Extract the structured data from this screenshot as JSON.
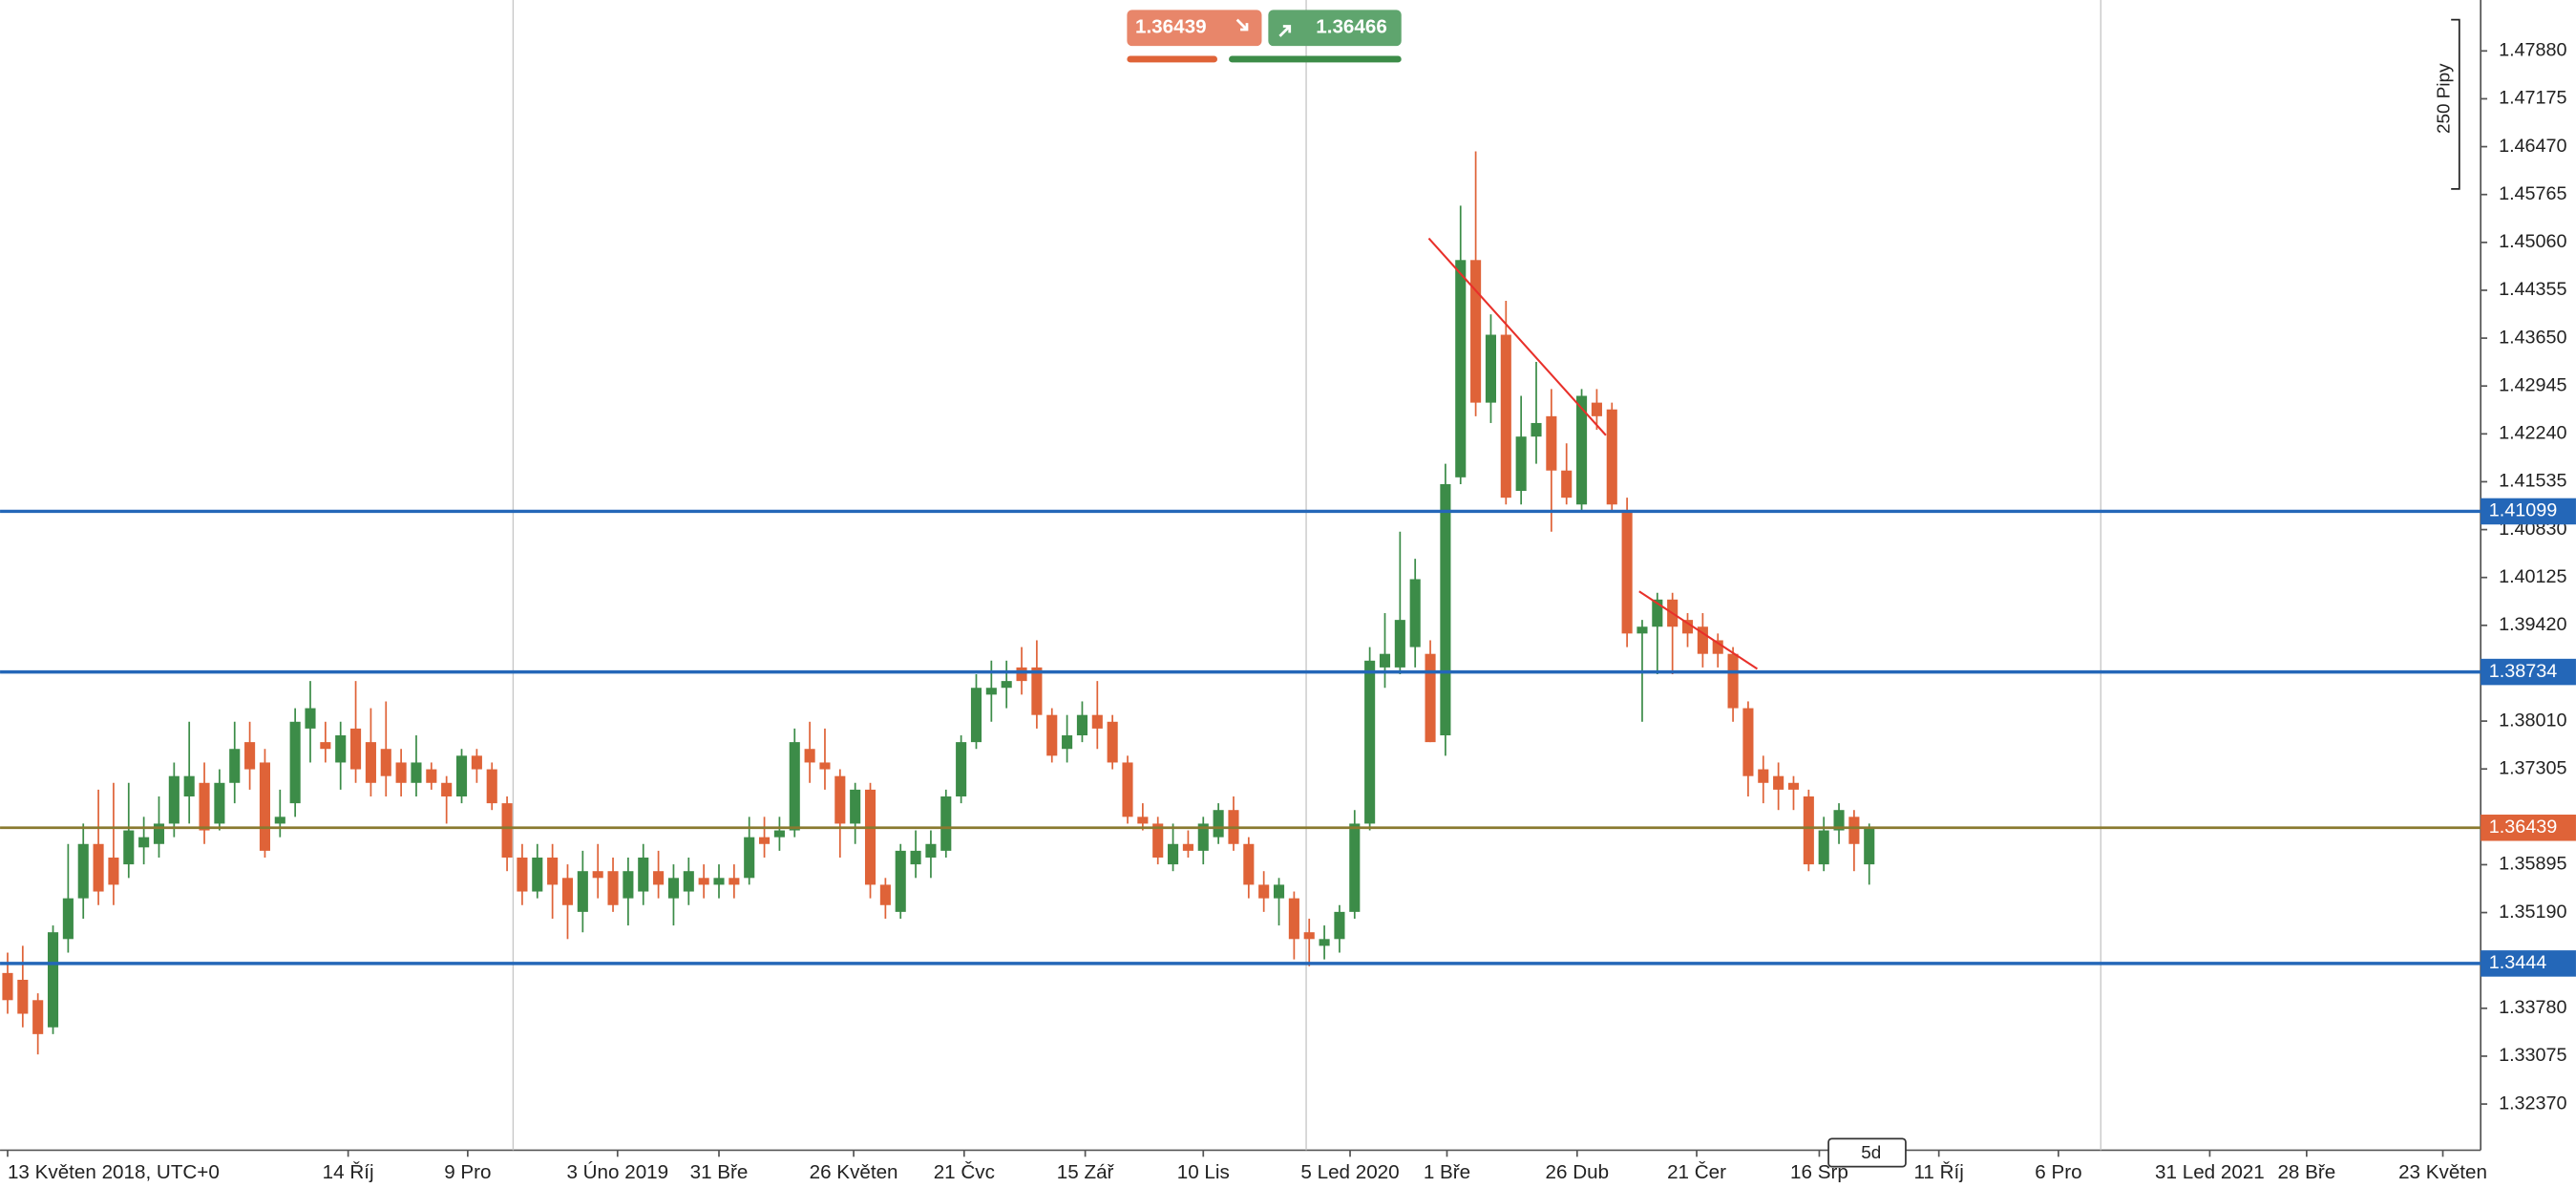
{
  "chart_data": {
    "type": "candlestick",
    "up_color": "#3c8c48",
    "down_color": "#df6338",
    "ohlc": [
      [
        1.343,
        1.346,
        1.337,
        1.339
      ],
      [
        1.342,
        1.347,
        1.335,
        1.337
      ],
      [
        1.339,
        1.34,
        1.331,
        1.334
      ],
      [
        1.335,
        1.35,
        1.334,
        1.349
      ],
      [
        1.348,
        1.362,
        1.346,
        1.354
      ],
      [
        1.354,
        1.365,
        1.351,
        1.362
      ],
      [
        1.362,
        1.37,
        1.353,
        1.355
      ],
      [
        1.36,
        1.371,
        1.353,
        1.356
      ],
      [
        1.359,
        1.371,
        1.357,
        1.364
      ],
      [
        1.3615,
        1.366,
        1.359,
        1.363
      ],
      [
        1.362,
        1.369,
        1.36,
        1.365
      ],
      [
        1.365,
        1.374,
        1.363,
        1.372
      ],
      [
        1.369,
        1.38,
        1.365,
        1.372
      ],
      [
        1.371,
        1.374,
        1.362,
        1.364
      ],
      [
        1.365,
        1.373,
        1.364,
        1.371
      ],
      [
        1.371,
        1.38,
        1.368,
        1.376
      ],
      [
        1.377,
        1.38,
        1.37,
        1.373
      ],
      [
        1.374,
        1.376,
        1.36,
        1.361
      ],
      [
        1.365,
        1.37,
        1.363,
        1.366
      ],
      [
        1.368,
        1.382,
        1.366,
        1.38
      ],
      [
        1.379,
        1.386,
        1.374,
        1.382
      ],
      [
        1.377,
        1.38,
        1.374,
        1.376
      ],
      [
        1.374,
        1.38,
        1.37,
        1.378
      ],
      [
        1.379,
        1.386,
        1.371,
        1.373
      ],
      [
        1.377,
        1.382,
        1.369,
        1.371
      ],
      [
        1.376,
        1.383,
        1.369,
        1.372
      ],
      [
        1.374,
        1.376,
        1.369,
        1.371
      ],
      [
        1.371,
        1.378,
        1.369,
        1.374
      ],
      [
        1.373,
        1.374,
        1.37,
        1.371
      ],
      [
        1.371,
        1.372,
        1.365,
        1.369
      ],
      [
        1.369,
        1.376,
        1.368,
        1.375
      ],
      [
        1.375,
        1.376,
        1.371,
        1.373
      ],
      [
        1.373,
        1.374,
        1.367,
        1.368
      ],
      [
        1.368,
        1.369,
        1.358,
        1.36
      ],
      [
        1.36,
        1.362,
        1.353,
        1.355
      ],
      [
        1.355,
        1.362,
        1.354,
        1.36
      ],
      [
        1.36,
        1.362,
        1.351,
        1.356
      ],
      [
        1.357,
        1.359,
        1.348,
        1.353
      ],
      [
        1.352,
        1.361,
        1.349,
        1.358
      ],
      [
        1.358,
        1.362,
        1.354,
        1.357
      ],
      [
        1.358,
        1.36,
        1.352,
        1.353
      ],
      [
        1.354,
        1.36,
        1.35,
        1.358
      ],
      [
        1.355,
        1.362,
        1.353,
        1.36
      ],
      [
        1.358,
        1.361,
        1.354,
        1.356
      ],
      [
        1.354,
        1.359,
        1.35,
        1.357
      ],
      [
        1.355,
        1.36,
        1.353,
        1.358
      ],
      [
        1.357,
        1.359,
        1.354,
        1.356
      ],
      [
        1.356,
        1.359,
        1.354,
        1.357
      ],
      [
        1.357,
        1.359,
        1.354,
        1.356
      ],
      [
        1.357,
        1.366,
        1.356,
        1.363
      ],
      [
        1.363,
        1.366,
        1.36,
        1.362
      ],
      [
        1.363,
        1.366,
        1.361,
        1.364
      ],
      [
        1.364,
        1.379,
        1.363,
        1.377
      ],
      [
        1.376,
        1.38,
        1.371,
        1.374
      ],
      [
        1.374,
        1.379,
        1.37,
        1.373
      ],
      [
        1.372,
        1.373,
        1.36,
        1.365
      ],
      [
        1.365,
        1.371,
        1.362,
        1.37
      ],
      [
        1.37,
        1.371,
        1.354,
        1.356
      ],
      [
        1.356,
        1.357,
        1.351,
        1.353
      ],
      [
        1.352,
        1.362,
        1.351,
        1.361
      ],
      [
        1.359,
        1.364,
        1.357,
        1.361
      ],
      [
        1.36,
        1.364,
        1.357,
        1.362
      ],
      [
        1.361,
        1.37,
        1.36,
        1.369
      ],
      [
        1.369,
        1.378,
        1.368,
        1.377
      ],
      [
        1.377,
        1.387,
        1.376,
        1.385
      ],
      [
        1.384,
        1.389,
        1.38,
        1.385
      ],
      [
        1.385,
        1.389,
        1.382,
        1.386
      ],
      [
        1.388,
        1.391,
        1.384,
        1.386
      ],
      [
        1.388,
        1.392,
        1.379,
        1.381
      ],
      [
        1.381,
        1.382,
        1.374,
        1.375
      ],
      [
        1.376,
        1.381,
        1.374,
        1.378
      ],
      [
        1.378,
        1.383,
        1.377,
        1.381
      ],
      [
        1.381,
        1.386,
        1.376,
        1.379
      ],
      [
        1.38,
        1.381,
        1.373,
        1.374
      ],
      [
        1.374,
        1.375,
        1.365,
        1.366
      ],
      [
        1.366,
        1.368,
        1.364,
        1.365
      ],
      [
        1.365,
        1.366,
        1.359,
        1.36
      ],
      [
        1.359,
        1.365,
        1.358,
        1.362
      ],
      [
        1.362,
        1.364,
        1.36,
        1.361
      ],
      [
        1.361,
        1.366,
        1.359,
        1.365
      ],
      [
        1.363,
        1.368,
        1.362,
        1.367
      ],
      [
        1.367,
        1.369,
        1.361,
        1.362
      ],
      [
        1.362,
        1.363,
        1.354,
        1.356
      ],
      [
        1.356,
        1.358,
        1.352,
        1.354
      ],
      [
        1.354,
        1.357,
        1.35,
        1.356
      ],
      [
        1.354,
        1.355,
        1.345,
        1.348
      ],
      [
        1.349,
        1.351,
        1.344,
        1.348
      ],
      [
        1.347,
        1.35,
        1.345,
        1.348
      ],
      [
        1.348,
        1.353,
        1.346,
        1.352
      ],
      [
        1.352,
        1.367,
        1.351,
        1.365
      ],
      [
        1.365,
        1.391,
        1.364,
        1.389
      ],
      [
        1.388,
        1.396,
        1.385,
        1.39
      ],
      [
        1.388,
        1.408,
        1.387,
        1.395
      ],
      [
        1.391,
        1.404,
        1.388,
        1.401
      ],
      [
        1.39,
        1.392,
        1.377,
        1.377
      ],
      [
        1.378,
        1.418,
        1.375,
        1.415
      ],
      [
        1.416,
        1.456,
        1.415,
        1.448
      ],
      [
        1.448,
        1.464,
        1.425,
        1.427
      ],
      [
        1.427,
        1.44,
        1.424,
        1.437
      ],
      [
        1.437,
        1.442,
        1.412,
        1.413
      ],
      [
        1.414,
        1.428,
        1.412,
        1.422
      ],
      [
        1.422,
        1.433,
        1.418,
        1.424
      ],
      [
        1.425,
        1.429,
        1.408,
        1.417
      ],
      [
        1.417,
        1.421,
        1.412,
        1.413
      ],
      [
        1.412,
        1.429,
        1.411,
        1.428
      ],
      [
        1.427,
        1.429,
        1.423,
        1.425
      ],
      [
        1.426,
        1.427,
        1.411,
        1.412
      ],
      [
        1.411,
        1.413,
        1.391,
        1.393
      ],
      [
        1.393,
        1.395,
        1.38,
        1.394
      ],
      [
        1.394,
        1.399,
        1.387,
        1.398
      ],
      [
        1.398,
        1.399,
        1.387,
        1.394
      ],
      [
        1.395,
        1.396,
        1.391,
        1.393
      ],
      [
        1.394,
        1.396,
        1.388,
        1.39
      ],
      [
        1.392,
        1.393,
        1.388,
        1.39
      ],
      [
        1.39,
        1.391,
        1.38,
        1.382
      ],
      [
        1.382,
        1.383,
        1.369,
        1.372
      ],
      [
        1.373,
        1.375,
        1.368,
        1.371
      ],
      [
        1.372,
        1.374,
        1.367,
        1.37
      ],
      [
        1.371,
        1.372,
        1.367,
        1.37
      ],
      [
        1.369,
        1.37,
        1.358,
        1.359
      ],
      [
        1.359,
        1.366,
        1.358,
        1.364
      ],
      [
        1.364,
        1.368,
        1.362,
        1.367
      ],
      [
        1.366,
        1.367,
        1.358,
        1.362
      ],
      [
        1.359,
        1.365,
        1.356,
        1.3644
      ]
    ],
    "xlim": [
      -0.5,
      163.4
    ],
    "xticks": [
      {
        "value": 0,
        "label": "13 Květen 2018, UTC+0"
      },
      {
        "value": 22.5,
        "label": "14 Říj"
      },
      {
        "value": 30.4,
        "label": "9 Pro"
      },
      {
        "value": 40.3,
        "label": "3 Úno 2019"
      },
      {
        "value": 47,
        "label": "31 Bře"
      },
      {
        "value": 55.9,
        "label": "26 Květen"
      },
      {
        "value": 63.2,
        "label": "21 Čvc"
      },
      {
        "value": 71.2,
        "label": "15 Zář"
      },
      {
        "value": 79,
        "label": "10 Lis"
      },
      {
        "value": 88.7,
        "label": "5 Led 2020"
      },
      {
        "value": 95.1,
        "label": "1 Bře"
      },
      {
        "value": 103.7,
        "label": "26 Dub"
      },
      {
        "value": 111.6,
        "label": "21 Čer"
      },
      {
        "value": 119.7,
        "label": "16 Srp"
      },
      {
        "value": 127.6,
        "label": "11 Říj"
      },
      {
        "value": 135.5,
        "label": "6 Pro"
      },
      {
        "value": 145.5,
        "label": "31 Led 2021"
      },
      {
        "value": 151.9,
        "label": "28 Bře"
      },
      {
        "value": 160.9,
        "label": "23 Květen"
      }
    ],
    "xgrid": [
      33.4,
      85.8,
      138.3
    ],
    "ylim": [
      1.3169,
      1.4863
    ],
    "yticks": [
      {
        "value": 1.4788,
        "label": "1.47880"
      },
      1.47175,
      {
        "value": 1.4647,
        "label": "1.46470"
      },
      1.45765,
      {
        "value": 1.4506,
        "label": "1.45060"
      },
      1.44355,
      {
        "value": 1.4365,
        "label": "1.43650"
      },
      1.42945,
      {
        "value": 1.4224,
        "label": "1.42240"
      },
      1.41535,
      {
        "value": 1.4083,
        "label": "1.40830"
      },
      1.40125,
      {
        "value": 1.3942,
        "label": "1.39420"
      },
      {
        "value": 1.3801,
        "label": "1.38010"
      },
      1.37305,
      1.35895,
      {
        "value": 1.3519,
        "label": "1.35190"
      },
      {
        "value": 1.3378,
        "label": "1.33780"
      },
      1.33075,
      {
        "value": 1.3237,
        "label": "1.32370"
      }
    ],
    "levels": [
      {
        "value": 1.41099,
        "color": "#2467b8"
      },
      {
        "value": 1.38734,
        "color": "#2467b8"
      },
      {
        "value": 1.3444,
        "color": "#2467b8"
      }
    ],
    "current_price": {
      "value": 1.36439,
      "color": "#df6338",
      "line_color": "#8a7a30"
    },
    "trendlines": [
      {
        "color": "#e8302a",
        "x": [
          93.9,
          105.6
        ],
        "y": [
          1.4512,
          1.4222
        ]
      },
      {
        "color": "#e8302a",
        "x": [
          107.8,
          115.6
        ],
        "y": [
          1.3992,
          1.3878
        ]
      }
    ],
    "range_label": "250 Pipy",
    "timeframe": "5d"
  },
  "ticker": {
    "sell": 1.36439,
    "buy": 1.36466
  }
}
